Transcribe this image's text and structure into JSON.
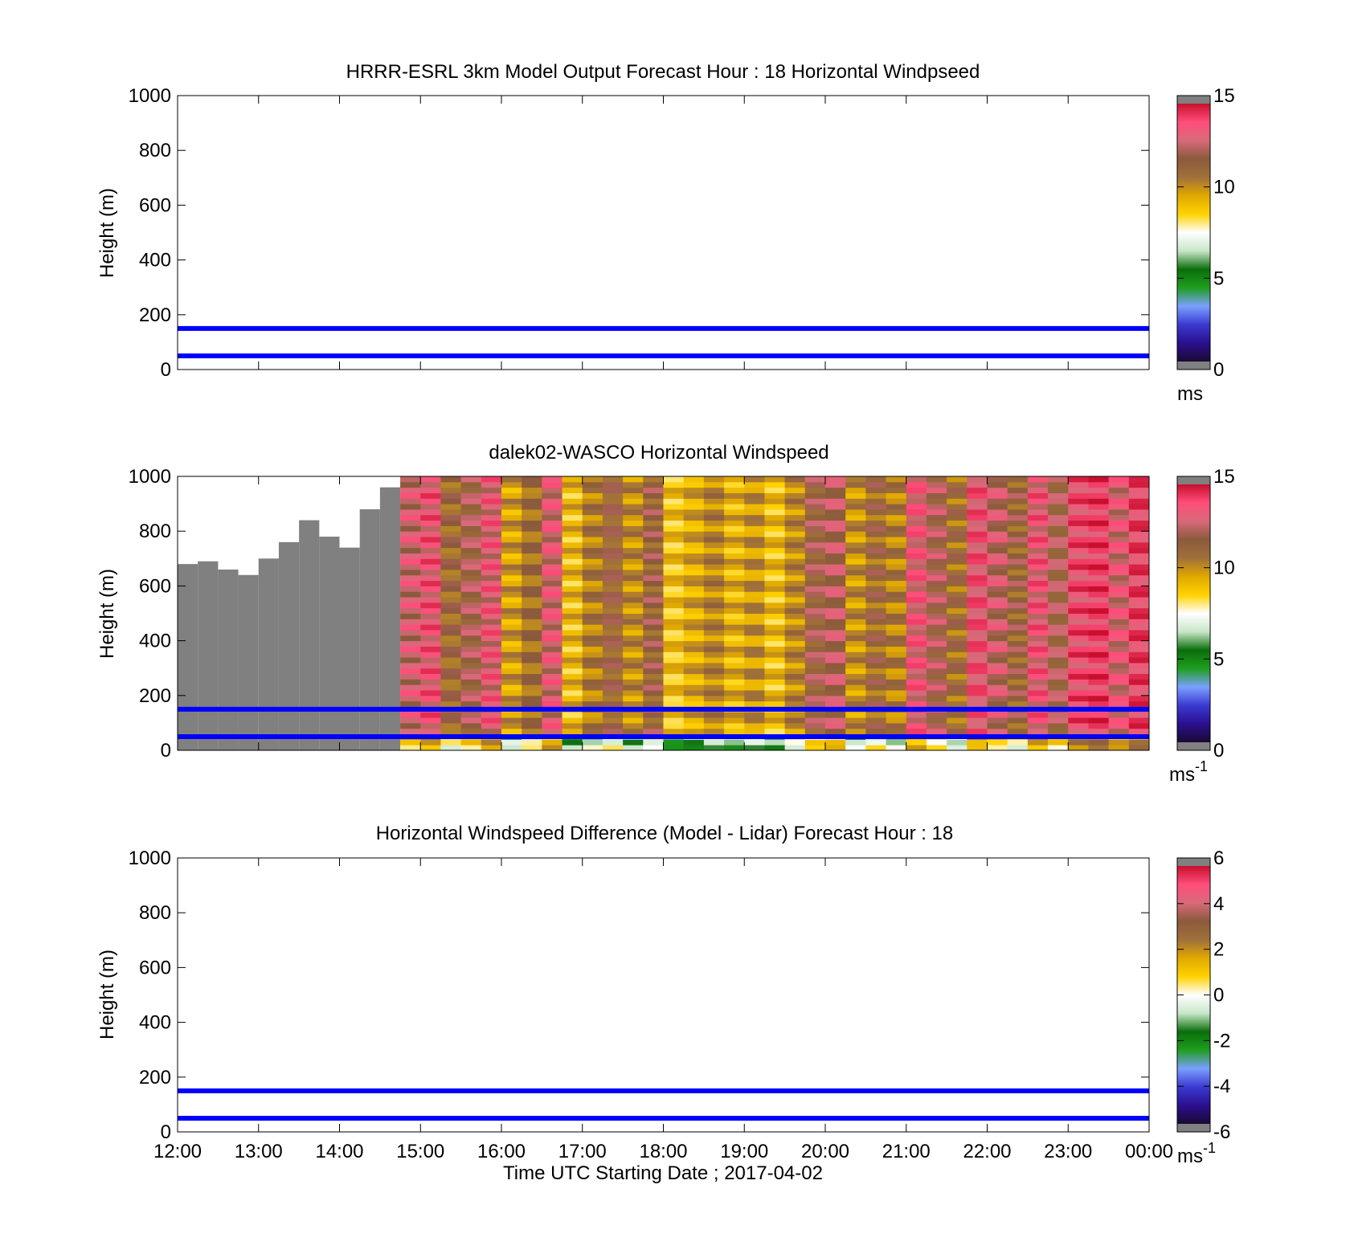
{
  "colors": {
    "reference_line": "#0000ff",
    "missing_data": "#808080",
    "colormap_speed": [
      "#1a0a33",
      "#2b0f8f",
      "#3a3ad0",
      "#7aa0ff",
      "#1f9e1f",
      "#0a6e0a",
      "#c8e6c8",
      "#ffffff",
      "#ffd200",
      "#e0a800",
      "#a0703a",
      "#8b5a3c",
      "#d86a7a",
      "#ff4d7a",
      "#c8102e"
    ],
    "colormap_diff": [
      "#1a0a33",
      "#2b0f8f",
      "#3a3ad0",
      "#7aa0ff",
      "#1f9e1f",
      "#0a6e0a",
      "#c8e6c8",
      "#ffffff",
      "#ffd200",
      "#e0a800",
      "#a0703a",
      "#8b5a3c",
      "#d86a7a",
      "#ff4d7a",
      "#c8102e"
    ]
  },
  "chart_data": [
    {
      "type": "heatmap",
      "title": "HRRR-ESRL 3km Model Output   Forecast Hour : 18 Horizontal Windpseed",
      "ylabel": "Height (m)",
      "xlabel": "",
      "ylim": [
        0,
        1000
      ],
      "yticks": [
        "0",
        "200",
        "400",
        "600",
        "800",
        "1000"
      ],
      "xticks": [
        "12:00",
        "13:00",
        "14:00",
        "15:00",
        "16:00",
        "17:00",
        "18:00",
        "19:00",
        "20:00",
        "21:00",
        "22:00",
        "23:00",
        "00:00"
      ],
      "xlim": [
        "12:00",
        "00:00"
      ],
      "show_xticklabels": false,
      "reference_lines_m": [
        50,
        150
      ],
      "colorbar": {
        "min": 0,
        "max": 15,
        "ticks": [
          "0",
          "5",
          "10",
          "15"
        ],
        "tick_values": [
          0,
          5,
          10,
          15
        ],
        "unit": "ms",
        "unit_superscript": ""
      },
      "values": []
    },
    {
      "type": "heatmap",
      "title": "dalek02-WASCO  Horizontal Windspeed",
      "ylabel": "Height (m)",
      "xlabel": "",
      "ylim": [
        0,
        1000
      ],
      "yticks": [
        "0",
        "200",
        "400",
        "600",
        "800",
        "1000"
      ],
      "xticks": [
        "12:00",
        "13:00",
        "14:00",
        "15:00",
        "16:00",
        "17:00",
        "18:00",
        "19:00",
        "20:00",
        "21:00",
        "22:00",
        "23:00",
        "00:00"
      ],
      "xlim": [
        "12:00",
        "00:00"
      ],
      "show_xticklabels": false,
      "reference_lines_m": [
        50,
        150
      ],
      "colorbar": {
        "min": 0,
        "max": 15,
        "ticks": [
          "0",
          "5",
          "10",
          "15"
        ],
        "tick_values": [
          0,
          5,
          10,
          15
        ],
        "unit": "ms",
        "unit_superscript": "-1"
      },
      "columns": [
        {
          "t": "12:00",
          "top": 680,
          "v": "missing"
        },
        {
          "t": "12:15",
          "top": 690,
          "v": "missing"
        },
        {
          "t": "12:30",
          "top": 660,
          "v": "missing"
        },
        {
          "t": "12:45",
          "top": 640,
          "v": "missing"
        },
        {
          "t": "13:00",
          "top": 700,
          "v": "missing"
        },
        {
          "t": "13:15",
          "top": 760,
          "v": "missing"
        },
        {
          "t": "13:30",
          "top": 840,
          "v": "missing"
        },
        {
          "t": "13:45",
          "top": 780,
          "v": "missing"
        },
        {
          "t": "14:00",
          "top": 740,
          "v": "missing"
        },
        {
          "t": "14:15",
          "top": 880,
          "v": "missing"
        },
        {
          "t": "14:30",
          "top": 960,
          "v": "missing"
        },
        {
          "t": "14:45",
          "v": 12.8
        },
        {
          "t": "15:00",
          "v": 13.5
        },
        {
          "t": "15:15",
          "v": 11.2
        },
        {
          "t": "15:30",
          "v": 12.0
        },
        {
          "t": "15:45",
          "v": 13.2
        },
        {
          "t": "16:00",
          "v": 9.8
        },
        {
          "t": "16:15",
          "v": 11.0
        },
        {
          "t": "16:30",
          "v": 13.0
        },
        {
          "t": "16:45",
          "v": 9.2
        },
        {
          "t": "17:00",
          "v": 10.6
        },
        {
          "t": "17:15",
          "v": 11.4
        },
        {
          "t": "17:30",
          "v": 10.2
        },
        {
          "t": "17:45",
          "v": 11.6
        },
        {
          "t": "18:00",
          "v": 9.0
        },
        {
          "t": "18:15",
          "v": 9.6
        },
        {
          "t": "18:30",
          "v": 10.4
        },
        {
          "t": "18:45",
          "v": 9.4
        },
        {
          "t": "19:00",
          "v": 10.0
        },
        {
          "t": "19:15",
          "v": 9.1
        },
        {
          "t": "19:30",
          "v": 10.3
        },
        {
          "t": "19:45",
          "v": 11.8
        },
        {
          "t": "20:00",
          "v": 12.4
        },
        {
          "t": "20:15",
          "v": 10.1
        },
        {
          "t": "20:30",
          "v": 11.2
        },
        {
          "t": "20:45",
          "v": 10.5
        },
        {
          "t": "21:00",
          "v": 13.3
        },
        {
          "t": "21:15",
          "v": 12.2
        },
        {
          "t": "21:30",
          "v": 11.0
        },
        {
          "t": "21:45",
          "v": 13.6
        },
        {
          "t": "22:00",
          "v": 12.6
        },
        {
          "t": "22:15",
          "v": 11.5
        },
        {
          "t": "22:30",
          "v": 13.4
        },
        {
          "t": "22:45",
          "v": 12.0
        },
        {
          "t": "23:00",
          "v": 13.8
        },
        {
          "t": "23:15",
          "v": 14.2
        },
        {
          "t": "23:30",
          "v": 13.0
        },
        {
          "t": "23:45",
          "v": 14.0
        }
      ]
    },
    {
      "type": "heatmap",
      "title": "Horizontal Windspeed Difference (Model - Lidar) Forecast Hour : 18",
      "ylabel": "Height (m)",
      "xlabel": "Time UTC  Starting Date ; 2017-04-02",
      "ylim": [
        0,
        1000
      ],
      "yticks": [
        "0",
        "200",
        "400",
        "600",
        "800",
        "1000"
      ],
      "xticks": [
        "12:00",
        "13:00",
        "14:00",
        "15:00",
        "16:00",
        "17:00",
        "18:00",
        "19:00",
        "20:00",
        "21:00",
        "22:00",
        "23:00",
        "00:00"
      ],
      "xlim": [
        "12:00",
        "00:00"
      ],
      "show_xticklabels": true,
      "reference_lines_m": [
        50,
        150
      ],
      "colorbar": {
        "min": -6,
        "max": 6,
        "ticks": [
          "-6",
          "-4",
          "-2",
          "0",
          "2",
          "4",
          "6"
        ],
        "tick_values": [
          -6,
          -4,
          -2,
          0,
          2,
          4,
          6
        ],
        "unit": "ms",
        "unit_superscript": "-1"
      },
      "values": []
    }
  ]
}
